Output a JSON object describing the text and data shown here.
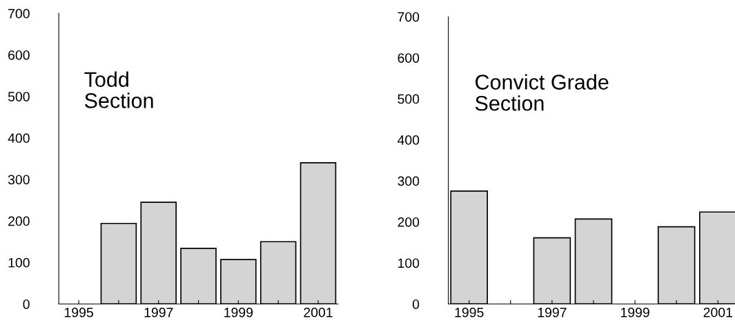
{
  "chart_data": [
    {
      "type": "bar",
      "title": "Todd\nSection",
      "categories": [
        "1995",
        null,
        "1997",
        null,
        "1999",
        null,
        "2001"
      ],
      "values": [
        null,
        194,
        245,
        134,
        107,
        150,
        340
      ],
      "color": "#d4d4d4",
      "ylim": [
        0,
        700
      ],
      "yticks": [
        0,
        100,
        200,
        300,
        400,
        500,
        600,
        700
      ],
      "grid": false,
      "legend": false
    },
    {
      "type": "bar",
      "title": "Convict Grade\nSection",
      "categories": [
        "1995",
        null,
        "1997",
        null,
        "1999",
        null,
        "2001"
      ],
      "values": [
        275,
        null,
        161,
        207,
        null,
        188,
        224
      ],
      "color": "#d4d4d4",
      "ylim": [
        0,
        700
      ],
      "yticks": [
        0,
        100,
        200,
        300,
        400,
        500,
        600,
        700
      ],
      "grid": false,
      "legend": false
    }
  ]
}
